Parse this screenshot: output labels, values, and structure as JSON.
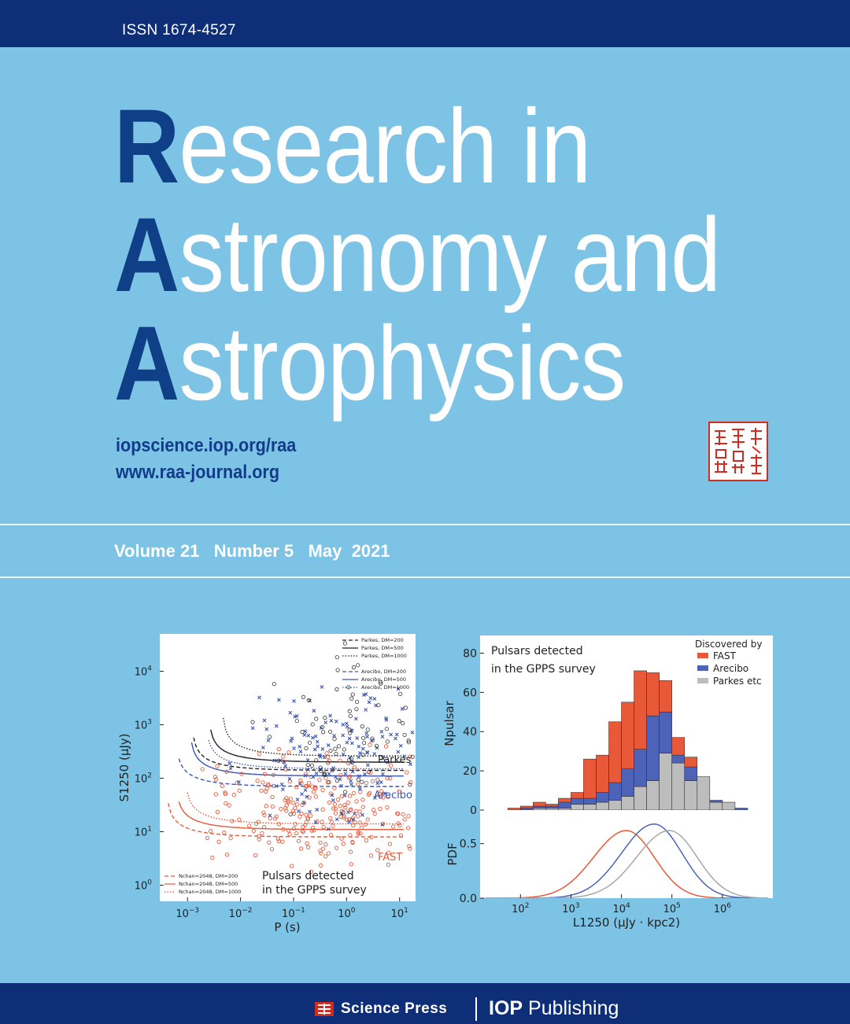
{
  "header": {
    "issn": "ISSN  1674-4527"
  },
  "title": {
    "line1": {
      "cap": "R",
      "rest": "esearch in"
    },
    "line2": {
      "cap": "A",
      "rest": "stronomy and"
    },
    "line3": {
      "cap": "A",
      "rest": "strophysics"
    }
  },
  "urls": [
    "iopscience.iop.org/raa",
    "www.raa-journal.org"
  ],
  "issue": {
    "text": "Volume 21   Number 5   May  2021"
  },
  "colors": {
    "brand_dark": "#0e2f78",
    "title_cap": "#0f3f86",
    "background": "#7cc3e6",
    "fast": "#e8593a",
    "arecibo": "#4d63b8",
    "parkes": "#bdbdbd"
  },
  "publishers": {
    "science_press": "Science Press",
    "iop_bold": "IOP",
    "iop_rest": " Publishing"
  },
  "chart_data": [
    {
      "type": "scatter",
      "xlabel": "P (s)",
      "ylabel": "S1250 (μJy)",
      "x_scale": "log",
      "y_scale": "log",
      "xlim": [
        0.0003,
        20
      ],
      "ylim": [
        0.5,
        50000
      ],
      "x_ticks": [
        "10−3",
        "10−2",
        "10−1",
        "100",
        "101"
      ],
      "y_ticks": [
        "100",
        "101",
        "102",
        "103",
        "104"
      ],
      "annotation": "Pulsars detected\nin the GPPS survey",
      "curve_labels": [
        "Parkes",
        "Arecibo",
        "FAST"
      ],
      "legend_top": [
        "Parkes, DM=200",
        "Parkes, DM=500",
        "Parkes, DM=1000",
        "Arecibo, DM=200",
        "Arecibo, DM=500",
        "Arecibo, DM=1000"
      ],
      "legend_bottom": [
        "Nchan=2048, DM=200",
        "Nchan=2048, DM=500",
        "Nchan=2048, DM=1000"
      ],
      "series": [
        {
          "name": "FAST",
          "color": "#e8593a",
          "marker": "star"
        },
        {
          "name": "Arecibo",
          "color": "#3a55b0",
          "marker": "x"
        },
        {
          "name": "Parkes",
          "color": "#333333",
          "marker": "circle"
        }
      ]
    },
    {
      "type": "bar",
      "stacked": true,
      "ylabel": "Npulsar",
      "ylim": [
        0,
        80
      ],
      "y_ticks": [
        "0",
        "20",
        "40",
        "60",
        "80"
      ],
      "annotation": "Pulsars detected\nin the GPPS survey",
      "legend_title": "Discovered by",
      "categories_log10": [
        1.75,
        2.0,
        2.25,
        2.5,
        2.75,
        3.0,
        3.25,
        3.5,
        3.75,
        4.0,
        4.25,
        4.5,
        4.75,
        5.0,
        5.25,
        5.5,
        5.75,
        6.0,
        6.25
      ],
      "series": [
        {
          "name": "Parkes etc",
          "color": "#bdbdbd",
          "values": [
            0,
            0,
            1,
            1,
            1,
            3,
            3,
            4,
            5,
            7,
            12,
            15,
            29,
            24,
            15,
            17,
            4,
            4,
            0
          ]
        },
        {
          "name": "Arecibo",
          "color": "#4d63b8",
          "values": [
            0,
            1,
            1,
            1,
            3,
            3,
            3,
            5,
            9,
            14,
            19,
            33,
            21,
            4,
            7,
            0,
            1,
            0,
            1
          ]
        },
        {
          "name": "FAST",
          "color": "#e8593a",
          "values": [
            1,
            1,
            2,
            1,
            2,
            3,
            20,
            19,
            31,
            34,
            40,
            22,
            16,
            9,
            5,
            0,
            0,
            0,
            0
          ]
        }
      ]
    },
    {
      "type": "line",
      "xlabel": "L1250 (μJy · kpc2)",
      "ylabel": "PDF",
      "x_scale": "log",
      "ylim": [
        0,
        0.75
      ],
      "y_ticks": [
        "0.0",
        "0.5"
      ],
      "x_ticks": [
        "102",
        "103",
        "104",
        "105",
        "106"
      ],
      "series": [
        {
          "name": "FAST",
          "color": "#e8593a",
          "peak_log10": 4.1,
          "peak": 0.62
        },
        {
          "name": "Arecibo",
          "color": "#4d63b8",
          "peak_log10": 4.65,
          "peak": 0.68
        },
        {
          "name": "Parkes etc",
          "color": "#a8a8a8",
          "peak_log10": 4.95,
          "peak": 0.62
        }
      ]
    }
  ]
}
